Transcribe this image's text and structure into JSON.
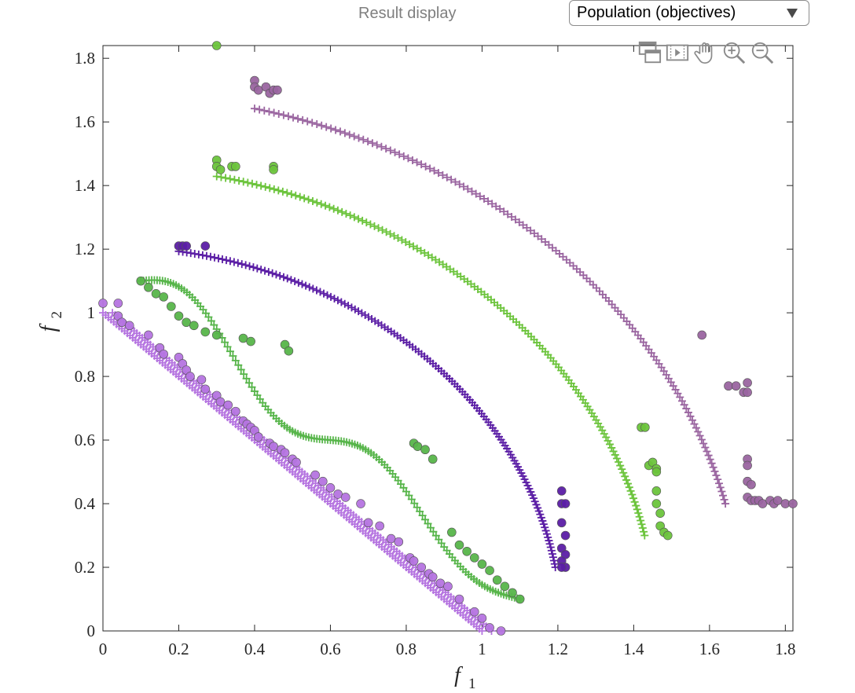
{
  "header": {
    "result_label": "Result display",
    "dropdown_value": "Population (objectives)"
  },
  "toolbar": {
    "icons": [
      "copy-figure-icon",
      "export-animation-icon",
      "pan-hand-icon",
      "zoom-in-icon",
      "zoom-out-icon"
    ]
  },
  "chart_data": {
    "type": "scatter",
    "title": "",
    "xlabel": "f",
    "xlabel_sub": "1",
    "ylabel": "f",
    "ylabel_sub": "2",
    "xlim": [
      0,
      1.82
    ],
    "ylim": [
      0,
      1.84
    ],
    "xticks": [
      "0",
      "0.2",
      "0.4",
      "0.6",
      "0.8",
      "1",
      "1.2",
      "1.4",
      "1.6",
      "1.8"
    ],
    "yticks": [
      "0",
      "0.2",
      "0.4",
      "0.6",
      "0.8",
      "1",
      "1.2",
      "1.4",
      "1.6",
      "1.8"
    ],
    "grid": false,
    "series": [
      {
        "color": "#b574e0",
        "front": {
          "shape": "linear",
          "x0": 0,
          "y0": 1,
          "x1": 1,
          "y1": 0,
          "offset": 0.025
        },
        "points": [
          [
            0,
            1.03
          ],
          [
            0.04,
            1.03
          ],
          [
            0.04,
            0.99
          ],
          [
            0.05,
            0.97
          ],
          [
            0.07,
            0.96
          ],
          [
            0.12,
            0.93
          ],
          [
            0.15,
            0.89
          ],
          [
            0.16,
            0.87
          ],
          [
            0.2,
            0.86
          ],
          [
            0.21,
            0.84
          ],
          [
            0.22,
            0.82
          ],
          [
            0.23,
            0.8
          ],
          [
            0.26,
            0.79
          ],
          [
            0.27,
            0.76
          ],
          [
            0.3,
            0.74
          ],
          [
            0.31,
            0.72
          ],
          [
            0.33,
            0.71
          ],
          [
            0.35,
            0.69
          ],
          [
            0.37,
            0.66
          ],
          [
            0.38,
            0.65
          ],
          [
            0.39,
            0.64
          ],
          [
            0.4,
            0.63
          ],
          [
            0.41,
            0.61
          ],
          [
            0.44,
            0.59
          ],
          [
            0.45,
            0.58
          ],
          [
            0.47,
            0.57
          ],
          [
            0.48,
            0.56
          ],
          [
            0.5,
            0.54
          ],
          [
            0.51,
            0.53
          ],
          [
            0.56,
            0.49
          ],
          [
            0.58,
            0.47
          ],
          [
            0.6,
            0.45
          ],
          [
            0.62,
            0.43
          ],
          [
            0.64,
            0.42
          ],
          [
            0.68,
            0.4
          ],
          [
            0.7,
            0.34
          ],
          [
            0.73,
            0.33
          ],
          [
            0.76,
            0.29
          ],
          [
            0.78,
            0.28
          ],
          [
            0.81,
            0.23
          ],
          [
            0.82,
            0.22
          ],
          [
            0.84,
            0.2
          ],
          [
            0.86,
            0.18
          ],
          [
            0.87,
            0.17
          ],
          [
            0.89,
            0.15
          ],
          [
            0.91,
            0.14
          ],
          [
            0.94,
            0.1
          ],
          [
            0.98,
            0.06
          ],
          [
            1.0,
            0.04
          ],
          [
            1.02,
            0.01
          ],
          [
            1.05,
            0.0
          ]
        ]
      },
      {
        "color": "#57b54a",
        "front": {
          "shape": "wavy",
          "x0": 0.1,
          "y0": 1.1,
          "x1": 1.1,
          "y1": 0.1
        },
        "points": [
          [
            0.1,
            1.1
          ],
          [
            0.12,
            1.08
          ],
          [
            0.14,
            1.06
          ],
          [
            0.16,
            1.05
          ],
          [
            0.18,
            1.02
          ],
          [
            0.2,
            0.99
          ],
          [
            0.22,
            0.97
          ],
          [
            0.24,
            0.96
          ],
          [
            0.27,
            0.94
          ],
          [
            0.3,
            0.93
          ],
          [
            0.37,
            0.92
          ],
          [
            0.39,
            0.91
          ],
          [
            0.48,
            0.9
          ],
          [
            0.49,
            0.88
          ],
          [
            0.82,
            0.59
          ],
          [
            0.83,
            0.58
          ],
          [
            0.85,
            0.57
          ],
          [
            0.87,
            0.54
          ],
          [
            0.92,
            0.31
          ],
          [
            0.94,
            0.27
          ],
          [
            0.96,
            0.25
          ],
          [
            0.98,
            0.23
          ],
          [
            1.0,
            0.21
          ],
          [
            1.02,
            0.19
          ],
          [
            1.04,
            0.16
          ],
          [
            1.06,
            0.14
          ],
          [
            1.08,
            0.12
          ],
          [
            1.1,
            0.1
          ]
        ]
      },
      {
        "color": "#5b1ea5",
        "front": {
          "shape": "arc",
          "cx": 0,
          "cy": 0,
          "rx": 1.21,
          "ry": 1.21,
          "xmin": 0.2,
          "ymin": 0.2
        },
        "points": [
          [
            0.2,
            1.21
          ],
          [
            0.21,
            1.21
          ],
          [
            0.22,
            1.21
          ],
          [
            0.27,
            1.21
          ],
          [
            1.21,
            0.44
          ],
          [
            1.21,
            0.4
          ],
          [
            1.22,
            0.4
          ],
          [
            1.21,
            0.34
          ],
          [
            1.22,
            0.3
          ],
          [
            1.21,
            0.26
          ],
          [
            1.22,
            0.24
          ],
          [
            1.21,
            0.22
          ],
          [
            1.22,
            0.2
          ],
          [
            1.21,
            0.2
          ]
        ]
      },
      {
        "color": "#6cc43c",
        "front": {
          "shape": "arc",
          "cx": 0,
          "cy": 0,
          "rx": 1.46,
          "ry": 1.46,
          "xmin": 0.3,
          "ymin": 0.3
        },
        "points": [
          [
            0.3,
            1.84
          ],
          [
            0.3,
            1.48
          ],
          [
            0.3,
            1.46
          ],
          [
            0.31,
            1.45
          ],
          [
            0.34,
            1.46
          ],
          [
            0.35,
            1.46
          ],
          [
            0.45,
            1.46
          ],
          [
            0.45,
            1.45
          ],
          [
            1.42,
            0.64
          ],
          [
            1.43,
            0.64
          ],
          [
            1.44,
            0.52
          ],
          [
            1.45,
            0.53
          ],
          [
            1.46,
            0.51
          ],
          [
            1.46,
            0.5
          ],
          [
            1.46,
            0.44
          ],
          [
            1.46,
            0.4
          ],
          [
            1.47,
            0.37
          ],
          [
            1.47,
            0.33
          ],
          [
            1.48,
            0.31
          ],
          [
            1.49,
            0.3
          ]
        ]
      },
      {
        "color": "#9a65a0",
        "front": {
          "shape": "arc",
          "cx": 0,
          "cy": 0,
          "rx": 1.69,
          "ry": 1.69,
          "xmin": 0.4,
          "ymin": 0.4
        },
        "points": [
          [
            0.4,
            1.73
          ],
          [
            0.4,
            1.71
          ],
          [
            0.41,
            1.7
          ],
          [
            0.43,
            1.71
          ],
          [
            0.44,
            1.69
          ],
          [
            0.45,
            1.7
          ],
          [
            0.46,
            1.7
          ],
          [
            1.58,
            0.93
          ],
          [
            1.65,
            0.77
          ],
          [
            1.67,
            0.77
          ],
          [
            1.69,
            0.75
          ],
          [
            1.7,
            0.78
          ],
          [
            1.7,
            0.75
          ],
          [
            1.7,
            0.54
          ],
          [
            1.7,
            0.52
          ],
          [
            1.7,
            0.47
          ],
          [
            1.71,
            0.46
          ],
          [
            1.7,
            0.42
          ],
          [
            1.71,
            0.41
          ],
          [
            1.72,
            0.41
          ],
          [
            1.73,
            0.41
          ],
          [
            1.74,
            0.4
          ],
          [
            1.76,
            0.41
          ],
          [
            1.77,
            0.4
          ],
          [
            1.78,
            0.41
          ],
          [
            1.8,
            0.4
          ],
          [
            1.82,
            0.4
          ]
        ]
      }
    ]
  }
}
